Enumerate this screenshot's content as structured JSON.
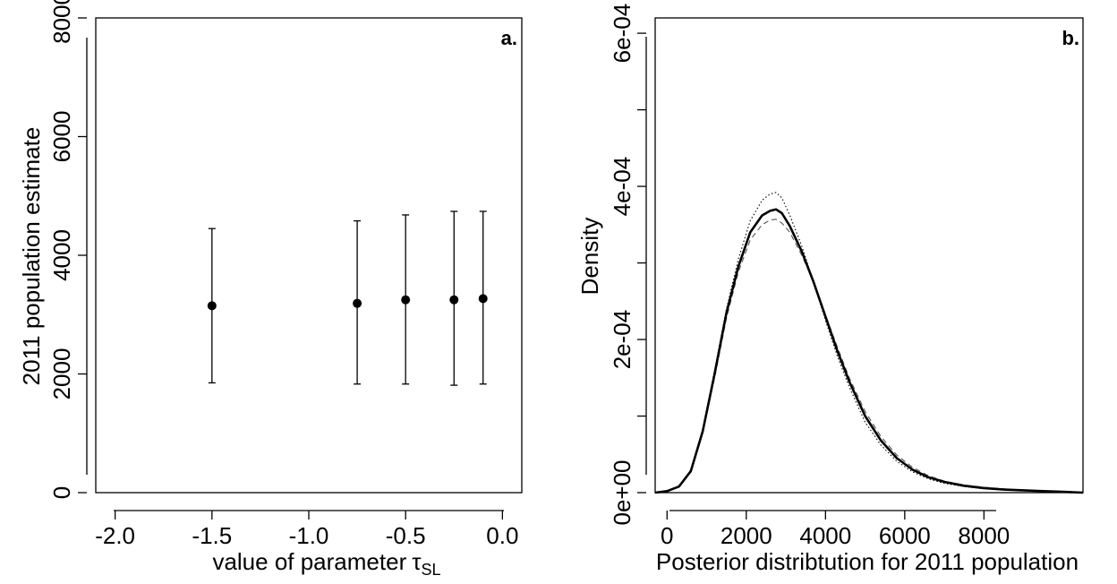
{
  "chart_data": [
    {
      "type": "scatter",
      "panel_label": "a.",
      "xlabel": "value of parameter",
      "xlabel_symbol": "τ",
      "xlabel_subscript": "SL",
      "ylabel": "2011 population estimate",
      "xlim": [
        -2.1,
        0.1
      ],
      "ylim": [
        0,
        8000
      ],
      "xticks": [
        "-2.0",
        "-1.5",
        "-1.0",
        "-0.5",
        "0.0"
      ],
      "yticks": [
        "0",
        "2000",
        "4000",
        "6000",
        "8000"
      ],
      "points": [
        {
          "x": -1.5,
          "y": 3150,
          "lower": 1850,
          "upper": 4450
        },
        {
          "x": -0.75,
          "y": 3190,
          "lower": 1830,
          "upper": 4580
        },
        {
          "x": -0.5,
          "y": 3250,
          "lower": 1830,
          "upper": 4680
        },
        {
          "x": -0.25,
          "y": 3250,
          "lower": 1810,
          "upper": 4740
        },
        {
          "x": -0.1,
          "y": 3270,
          "lower": 1830,
          "upper": 4740
        }
      ]
    },
    {
      "type": "line",
      "panel_label": "b.",
      "xlabel": "Posterior distribtution for 2011 population",
      "ylabel": "Density",
      "xlim": [
        -300,
        10500
      ],
      "ylim": [
        0,
        0.00062
      ],
      "xticks": [
        "0",
        "2000",
        "4000",
        "6000",
        "8000"
      ],
      "yticks": [
        "0e+00",
        "2e-04",
        "4e-04",
        "6e-04"
      ],
      "series": [
        {
          "style": "solid",
          "x": [
            -300,
            0,
            300,
            600,
            900,
            1200,
            1500,
            1800,
            2100,
            2400,
            2600,
            2750,
            2900,
            3100,
            3400,
            3700,
            4000,
            4300,
            4600,
            5000,
            5400,
            5800,
            6200,
            6600,
            7000,
            7500,
            8000,
            8500,
            9000,
            9500,
            10000,
            10500
          ],
          "y": [
            0.0,
            2e-06,
            8e-06,
            2.8e-05,
            8e-05,
            0.000155,
            0.000235,
            0.000295,
            0.00034,
            0.000362,
            0.000368,
            0.00037,
            0.000365,
            0.000348,
            0.000315,
            0.000275,
            0.00023,
            0.000185,
            0.000145,
            0.0001,
            6.8e-05,
            4.5e-05,
            3e-05,
            2e-05,
            1.4e-05,
            9e-06,
            6e-06,
            4e-06,
            3e-06,
            2e-06,
            1e-06,
            0.0
          ]
        },
        {
          "style": "dotted",
          "x": [
            -300,
            0,
            300,
            600,
            900,
            1200,
            1500,
            1800,
            2100,
            2400,
            2600,
            2750,
            2900,
            3100,
            3400,
            3700,
            4000,
            4300,
            4600,
            5000,
            5400,
            5800,
            6200,
            6600,
            7000,
            7500,
            8000,
            8500,
            9000,
            9500,
            10000,
            10500
          ],
          "y": [
            0.0,
            2e-06,
            8e-06,
            3e-05,
            8.2e-05,
            0.00016,
            0.00024,
            0.000305,
            0.000355,
            0.000382,
            0.00039,
            0.000392,
            0.000385,
            0.000362,
            0.000322,
            0.000275,
            0.000225,
            0.000178,
            0.000138,
            9.2e-05,
            6.2e-05,
            4.1e-05,
            2.7e-05,
            1.8e-05,
            1.2e-05,
            8e-06,
            5e-06,
            4e-06,
            3e-06,
            2e-06,
            1e-06,
            0.0
          ]
        },
        {
          "style": "dashed",
          "x": [
            -300,
            0,
            300,
            600,
            900,
            1200,
            1500,
            1800,
            2100,
            2400,
            2600,
            2750,
            2900,
            3100,
            3400,
            3700,
            4000,
            4300,
            4600,
            5000,
            5400,
            5800,
            6200,
            6600,
            7000,
            7500,
            8000,
            8500,
            9000,
            9500,
            10000,
            10500
          ],
          "y": [
            0.0,
            2e-06,
            8e-06,
            2.7e-05,
            7.8e-05,
            0.00015,
            0.000228,
            0.000288,
            0.00033,
            0.00035,
            0.000356,
            0.000357,
            0.000352,
            0.00034,
            0.00031,
            0.000275,
            0.000232,
            0.00019,
            0.00015,
            0.000106,
            7.3e-05,
            4.9e-05,
            3.3e-05,
            2.2e-05,
            1.5e-05,
            1e-05,
            7e-06,
            5e-06,
            3e-06,
            2e-06,
            1e-06,
            0.0
          ]
        }
      ]
    }
  ]
}
